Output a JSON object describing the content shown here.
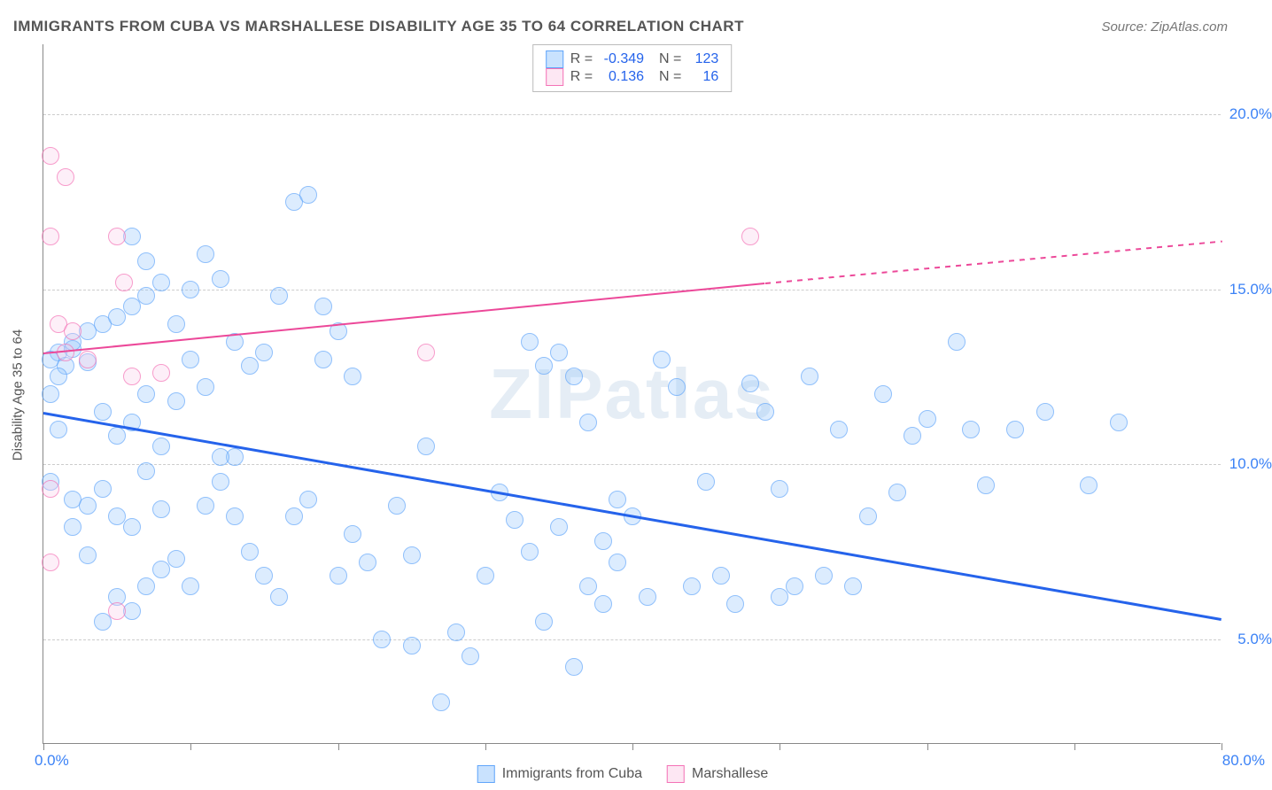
{
  "title": "IMMIGRANTS FROM CUBA VS MARSHALLESE DISABILITY AGE 35 TO 64 CORRELATION CHART",
  "source": "Source: ZipAtlas.com",
  "ylabel": "Disability Age 35 to 64",
  "watermark": {
    "bold": "ZIP",
    "rest": "atlas"
  },
  "chart": {
    "type": "scatter",
    "xlim": [
      0,
      80
    ],
    "ylim": [
      2,
      22
    ],
    "ytick_values": [
      5,
      10,
      15,
      20
    ],
    "ytick_labels": [
      "5.0%",
      "10.0%",
      "15.0%",
      "20.0%"
    ],
    "xtick_positions": [
      0,
      10,
      20,
      30,
      40,
      50,
      60,
      70,
      80
    ],
    "xtick_left_label": "0.0%",
    "xtick_right_label": "80.0%",
    "series": [
      {
        "name": "Immigrants from Cuba",
        "color_fill": "rgba(147,197,253,0.45)",
        "color_stroke": "#60a5fa",
        "trend_color": "#2563eb",
        "R": "-0.349",
        "N": "123",
        "trend": {
          "x1": 0,
          "y1": 11.5,
          "x2": 80,
          "y2": 5.6
        },
        "points": [
          [
            1,
            13.2
          ],
          [
            2,
            13.3
          ],
          [
            1.5,
            12.8
          ],
          [
            0.5,
            13.0
          ],
          [
            1,
            12.5
          ],
          [
            2,
            13.5
          ],
          [
            3,
            12.9
          ],
          [
            0.5,
            9.5
          ],
          [
            2,
            9.0
          ],
          [
            3,
            8.8
          ],
          [
            4,
            9.3
          ],
          [
            5,
            8.5
          ],
          [
            6,
            8.2
          ],
          [
            7,
            9.8
          ],
          [
            8,
            8.7
          ],
          [
            3,
            13.8
          ],
          [
            4,
            14.0
          ],
          [
            5,
            14.2
          ],
          [
            6,
            14.5
          ],
          [
            7,
            14.8
          ],
          [
            8,
            15.2
          ],
          [
            9,
            14.0
          ],
          [
            10,
            15.0
          ],
          [
            11,
            16.0
          ],
          [
            12,
            15.3
          ],
          [
            13,
            13.5
          ],
          [
            14,
            12.8
          ],
          [
            15,
            13.2
          ],
          [
            16,
            14.8
          ],
          [
            17,
            17.5
          ],
          [
            18,
            17.7
          ],
          [
            19,
            13.0
          ],
          [
            20,
            6.8
          ],
          [
            21,
            8.0
          ],
          [
            5,
            6.2
          ],
          [
            6,
            5.8
          ],
          [
            4,
            5.5
          ],
          [
            7,
            6.5
          ],
          [
            8,
            7.0
          ],
          [
            9,
            7.3
          ],
          [
            10,
            6.5
          ],
          [
            11,
            8.8
          ],
          [
            12,
            9.5
          ],
          [
            13,
            10.2
          ],
          [
            14,
            7.5
          ],
          [
            15,
            6.8
          ],
          [
            16,
            6.2
          ],
          [
            17,
            8.5
          ],
          [
            18,
            9.0
          ],
          [
            19,
            14.5
          ],
          [
            20,
            13.8
          ],
          [
            21,
            12.5
          ],
          [
            22,
            7.2
          ],
          [
            23,
            5.0
          ],
          [
            24,
            8.8
          ],
          [
            25,
            4.8
          ],
          [
            25,
            7.4
          ],
          [
            26,
            10.5
          ],
          [
            27,
            3.2
          ],
          [
            28,
            5.2
          ],
          [
            29,
            4.5
          ],
          [
            30,
            6.8
          ],
          [
            31,
            9.2
          ],
          [
            32,
            8.4
          ],
          [
            33,
            13.5
          ],
          [
            34,
            12.8
          ],
          [
            35,
            13.2
          ],
          [
            36,
            4.2
          ],
          [
            37,
            6.5
          ],
          [
            38,
            7.8
          ],
          [
            39,
            9.0
          ],
          [
            33,
            7.5
          ],
          [
            34,
            5.5
          ],
          [
            35,
            8.2
          ],
          [
            36,
            12.5
          ],
          [
            37,
            11.2
          ],
          [
            38,
            6.0
          ],
          [
            39,
            7.2
          ],
          [
            40,
            8.5
          ],
          [
            41,
            6.2
          ],
          [
            42,
            13.0
          ],
          [
            43,
            12.2
          ],
          [
            44,
            6.5
          ],
          [
            45,
            9.5
          ],
          [
            46,
            6.8
          ],
          [
            47,
            6.0
          ],
          [
            48,
            12.3
          ],
          [
            49,
            11.5
          ],
          [
            50,
            6.2
          ],
          [
            50,
            9.3
          ],
          [
            51,
            6.5
          ],
          [
            52,
            12.5
          ],
          [
            53,
            6.8
          ],
          [
            54,
            11.0
          ],
          [
            55,
            6.5
          ],
          [
            56,
            8.5
          ],
          [
            57,
            12.0
          ],
          [
            58,
            9.2
          ],
          [
            59,
            10.8
          ],
          [
            60,
            11.3
          ],
          [
            62,
            13.5
          ],
          [
            63,
            11.0
          ],
          [
            64,
            9.4
          ],
          [
            66,
            11.0
          ],
          [
            68,
            11.5
          ],
          [
            71,
            9.4
          ],
          [
            73,
            11.2
          ],
          [
            4,
            11.5
          ],
          [
            5,
            10.8
          ],
          [
            6,
            11.2
          ],
          [
            7,
            12.0
          ],
          [
            8,
            10.5
          ],
          [
            9,
            11.8
          ],
          [
            10,
            13.0
          ],
          [
            11,
            12.2
          ],
          [
            12,
            10.2
          ],
          [
            13,
            8.5
          ],
          [
            3,
            7.4
          ],
          [
            2,
            8.2
          ],
          [
            1,
            11.0
          ],
          [
            0.5,
            12.0
          ],
          [
            6,
            16.5
          ],
          [
            7,
            15.8
          ]
        ]
      },
      {
        "name": "Marshallese",
        "color_fill": "rgba(251,207,232,0.45)",
        "color_stroke": "#f472b6",
        "trend_color": "#ec4899",
        "R": "0.136",
        "N": "16",
        "trend_solid": {
          "x1": 0,
          "y1": 13.2,
          "x2": 49,
          "y2": 15.2
        },
        "trend_dashed": {
          "x1": 49,
          "y1": 15.2,
          "x2": 80,
          "y2": 16.4
        },
        "points": [
          [
            0.5,
            18.8
          ],
          [
            1.5,
            18.2
          ],
          [
            0.5,
            16.5
          ],
          [
            5,
            16.5
          ],
          [
            5.5,
            15.2
          ],
          [
            1,
            14.0
          ],
          [
            2,
            13.8
          ],
          [
            1.5,
            13.2
          ],
          [
            6,
            12.5
          ],
          [
            8,
            12.6
          ],
          [
            0.5,
            9.3
          ],
          [
            0.5,
            7.2
          ],
          [
            5,
            5.8
          ],
          [
            26,
            13.2
          ],
          [
            48,
            16.5
          ],
          [
            3,
            13.0
          ]
        ]
      }
    ]
  },
  "legend_bottom": [
    {
      "swatch": "blue",
      "label": "Immigrants from Cuba"
    },
    {
      "swatch": "pink",
      "label": "Marshallese"
    }
  ]
}
